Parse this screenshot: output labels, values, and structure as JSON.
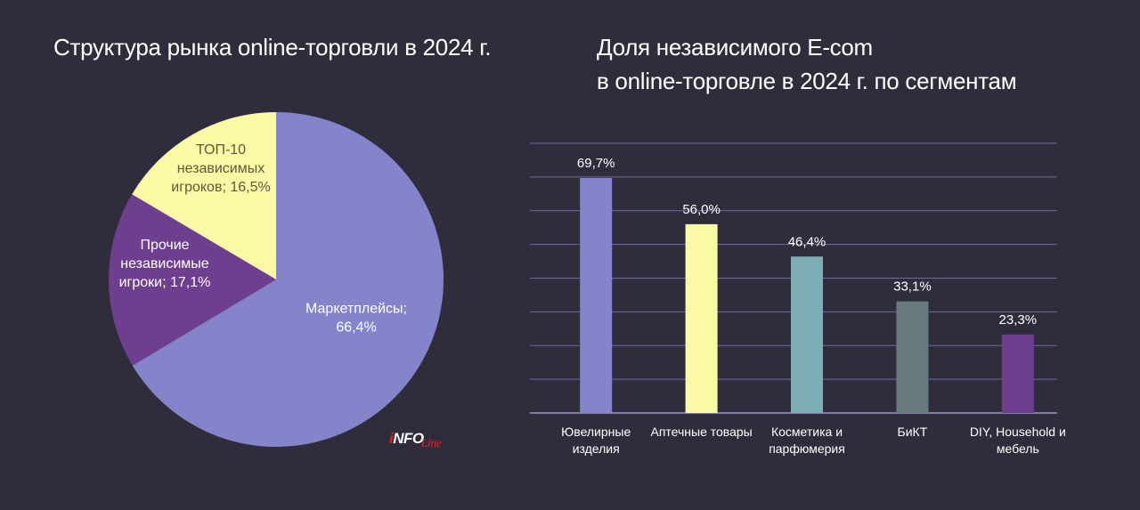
{
  "logo": {
    "i": "i",
    "nfo": "NFO",
    "line": "Line"
  },
  "chart_data": [
    {
      "type": "pie",
      "title": "Структура рынка online-торговли в 2024 г.",
      "slices": [
        {
          "label_lines": [
            "Маркетплейсы;",
            "66,4%"
          ],
          "value": 66.4,
          "color": "#8583c9"
        },
        {
          "label_lines": [
            "Прочие",
            "независимые",
            "игроки; 17,1%"
          ],
          "value": 17.1,
          "color": "#6f3f8f"
        },
        {
          "label_lines": [
            "ТОП-10",
            "независимых",
            "игроков; 16,5%"
          ],
          "value": 16.5,
          "color": "#fbf9a5"
        }
      ],
      "legend": "none"
    },
    {
      "type": "bar",
      "title_lines": [
        "Доля независимого E-com",
        "в online-торговле в 2024 г. по сегментам"
      ],
      "categories": [
        [
          "Ювелирные",
          "изделия"
        ],
        [
          "Аптечные товары"
        ],
        [
          "Косметика и",
          "парфюмерия"
        ],
        [
          "БиКТ"
        ],
        [
          "DIY, Household и",
          "мебель"
        ]
      ],
      "values": [
        69.7,
        56.0,
        46.4,
        33.1,
        23.3
      ],
      "value_labels": [
        "69,7%",
        "56,0%",
        "46,4%",
        "33,1%",
        "23,3%"
      ],
      "colors": [
        "#8583c9",
        "#fbf9a5",
        "#7fadb5",
        "#687a7d",
        "#6f3f8f"
      ],
      "ylim": [
        0,
        80
      ],
      "grid": true,
      "legend": "none"
    }
  ]
}
